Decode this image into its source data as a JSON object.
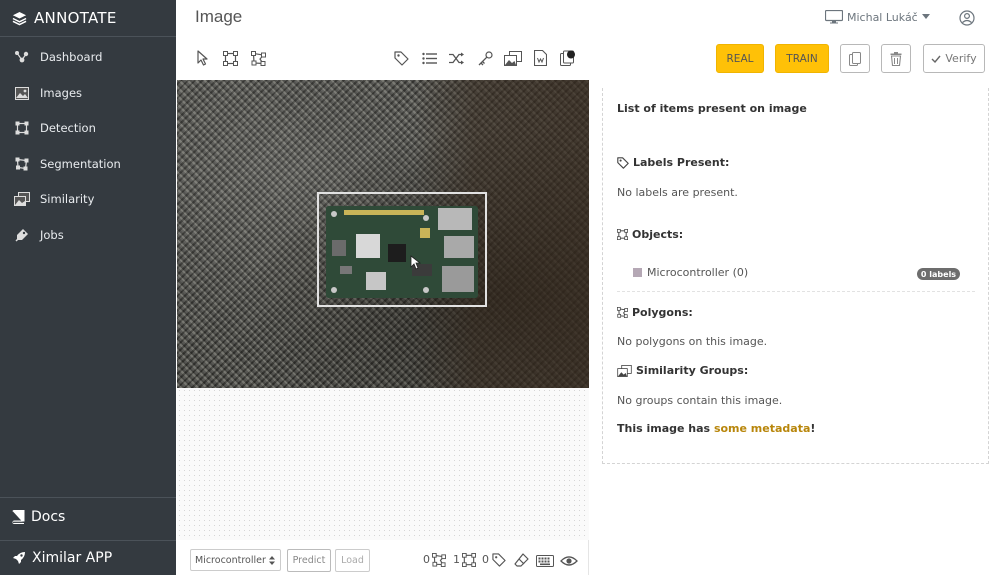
{
  "app": {
    "brand": "ANNOTATE"
  },
  "sidebar": {
    "items": [
      {
        "label": "Dashboard",
        "icon": "dashboard-icon"
      },
      {
        "label": "Images",
        "icon": "images-icon"
      },
      {
        "label": "Detection",
        "icon": "detection-icon"
      },
      {
        "label": "Segmentation",
        "icon": "segmentation-icon"
      },
      {
        "label": "Similarity",
        "icon": "similarity-icon"
      },
      {
        "label": "Jobs",
        "icon": "jobs-icon"
      }
    ],
    "docs": "Docs",
    "ximilar": "Ximilar APP"
  },
  "header": {
    "title": "Image",
    "user": "Michal Lukáč"
  },
  "toolbar": {
    "real_label": "REAL",
    "train_label": "TRAIN",
    "verify_label": "Verify"
  },
  "canvas": {
    "select_value": "Microcontroller",
    "predict_label": "Predict",
    "load_label": "Load",
    "counts": {
      "polygons": "0",
      "objects": "1",
      "labels": "0"
    }
  },
  "panel": {
    "title": "List of items present on image",
    "labels_heading": "Labels Present:",
    "labels_empty": "No labels are present.",
    "objects_heading": "Objects:",
    "object_name": "Microcontroller (0)",
    "object_badge": "0 labels",
    "polygons_heading": "Polygons:",
    "polygons_empty": "No polygons on this image.",
    "similarity_heading": "Similarity Groups:",
    "similarity_empty": "No groups contain this image.",
    "metadata_pre": "This image has ",
    "metadata_link": "some metadata",
    "metadata_post": "!"
  },
  "colors": {
    "sidebar_bg": "#343a40",
    "accent_yellow": "#ffc107",
    "object_swatch": "#b5a8b5"
  }
}
